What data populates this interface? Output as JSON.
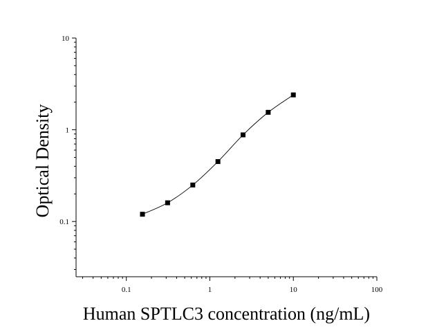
{
  "chart_data": {
    "type": "scatter",
    "title": "",
    "xlabel": "Human SPTLC3 concentration (ng/mL)",
    "ylabel": "Optical Density",
    "x_scale": "log",
    "y_scale": "log",
    "xlim": [
      0.025,
      100
    ],
    "ylim": [
      0.025,
      10
    ],
    "x_ticks": [
      0.1,
      1,
      10,
      100
    ],
    "x_tick_labels": [
      "0.1",
      "1",
      "10",
      "100"
    ],
    "y_ticks": [
      0.1,
      1,
      10
    ],
    "y_tick_labels": [
      "0.1",
      "1",
      "10"
    ],
    "grid": false,
    "legend": "none",
    "marker": "square",
    "colors": {
      "points": "#000000",
      "curve": "#000000",
      "axes": "#000000"
    },
    "points": [
      {
        "x": 0.156,
        "y": 0.12
      },
      {
        "x": 0.312,
        "y": 0.16
      },
      {
        "x": 0.625,
        "y": 0.25
      },
      {
        "x": 1.25,
        "y": 0.45
      },
      {
        "x": 2.5,
        "y": 0.88
      },
      {
        "x": 5,
        "y": 1.55
      },
      {
        "x": 10,
        "y": 2.4
      }
    ]
  }
}
